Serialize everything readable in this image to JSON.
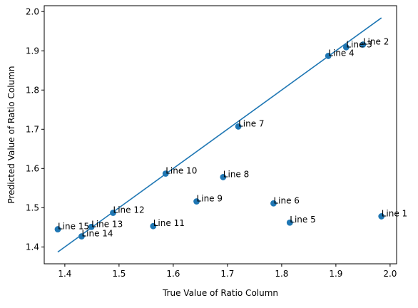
{
  "chart_data": {
    "type": "scatter",
    "xlabel": "True Value of Ratio Column",
    "ylabel": "Predicted Value of Ratio Column",
    "xlim": [
      1.362,
      2.012
    ],
    "ylim": [
      1.357,
      2.015
    ],
    "x_ticks": [
      1.4,
      1.5,
      1.6,
      1.7,
      1.8,
      1.9,
      2.0
    ],
    "y_ticks": [
      1.4,
      1.5,
      1.6,
      1.7,
      1.8,
      1.9,
      2.0
    ],
    "x_tick_labels": [
      "1.4",
      "1.5",
      "1.6",
      "1.7",
      "1.8",
      "1.9",
      "2.0"
    ],
    "y_tick_labels": [
      "1.4",
      "1.5",
      "1.6",
      "1.7",
      "1.8",
      "1.9",
      "2.0"
    ],
    "grid": false,
    "colors": {
      "marker": "#1f77b4",
      "line": "#1f77b4"
    },
    "points": [
      {
        "label": "Line 1",
        "x": 1.984,
        "y": 1.478
      },
      {
        "label": "Line 2",
        "x": 1.95,
        "y": 1.916
      },
      {
        "label": "Line 3",
        "x": 1.919,
        "y": 1.909
      },
      {
        "label": "Line 4",
        "x": 1.886,
        "y": 1.887
      },
      {
        "label": "Line 5",
        "x": 1.815,
        "y": 1.462
      },
      {
        "label": "Line 6",
        "x": 1.785,
        "y": 1.511
      },
      {
        "label": "Line 7",
        "x": 1.72,
        "y": 1.707
      },
      {
        "label": "Line 8",
        "x": 1.692,
        "y": 1.578
      },
      {
        "label": "Line 9",
        "x": 1.643,
        "y": 1.516
      },
      {
        "label": "Line 10",
        "x": 1.586,
        "y": 1.587
      },
      {
        "label": "Line 11",
        "x": 1.563,
        "y": 1.453
      },
      {
        "label": "Line 12",
        "x": 1.489,
        "y": 1.487
      },
      {
        "label": "Line 13",
        "x": 1.449,
        "y": 1.451
      },
      {
        "label": "Line 14",
        "x": 1.431,
        "y": 1.427
      },
      {
        "label": "Line 15",
        "x": 1.387,
        "y": 1.445
      }
    ],
    "reference_line": {
      "x": [
        1.387,
        1.984
      ],
      "y": [
        1.387,
        1.984
      ]
    }
  }
}
